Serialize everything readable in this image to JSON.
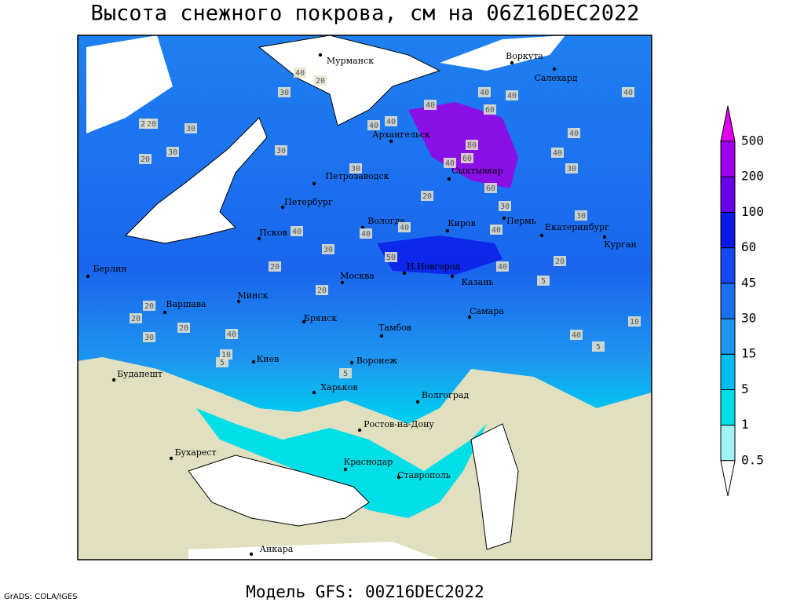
{
  "header": {
    "title": "Высота снежного покрова, см на 06Z16DEC2022"
  },
  "footer": {
    "model": "Модель GFS: 00Z16DEC2022",
    "credit": "GrADS: COLA/IGES"
  },
  "cities": [
    "Мурманск",
    "Воркута",
    "Салехард",
    "Архангельск",
    "Сыктывкар",
    "Петрозаводск",
    "Петербург",
    "Вологда",
    "Киров",
    "Пермь",
    "Екатеринбург",
    "Курган",
    "Псков",
    "Н.Новгород",
    "Казань",
    "Москва",
    "Берлин",
    "Варшава",
    "Минск",
    "Брянск",
    "Тамбов",
    "Самара",
    "Киев",
    "Воронеж",
    "Будапешт",
    "Харьков",
    "Волгоград",
    "Ростов-на-Дону",
    "Бухарест",
    "Краснодар",
    "Ставрополь",
    "Анкара"
  ],
  "contour_labels": [
    20,
    40,
    20,
    30,
    20,
    30,
    30,
    20,
    30,
    30,
    40,
    40,
    40,
    40,
    40,
    60,
    80,
    60,
    40,
    40,
    30,
    40,
    40,
    30,
    40,
    40,
    40,
    40,
    30,
    20,
    20,
    50,
    20,
    40,
    5,
    10,
    20,
    20,
    30,
    10,
    5,
    20,
    20,
    40,
    5,
    5,
    40,
    60,
    30
  ],
  "legend": {
    "levels": [
      0.5,
      1,
      5,
      15,
      30,
      45,
      60,
      100,
      200,
      500
    ],
    "colors": [
      "#ffffff",
      "#a0f4f8",
      "#00dfe8",
      "#00bff0",
      "#1e96f0",
      "#1c70f0",
      "#1448f0",
      "#0a18e8",
      "#6800e8",
      "#a000f0",
      "#e000f0"
    ]
  }
}
